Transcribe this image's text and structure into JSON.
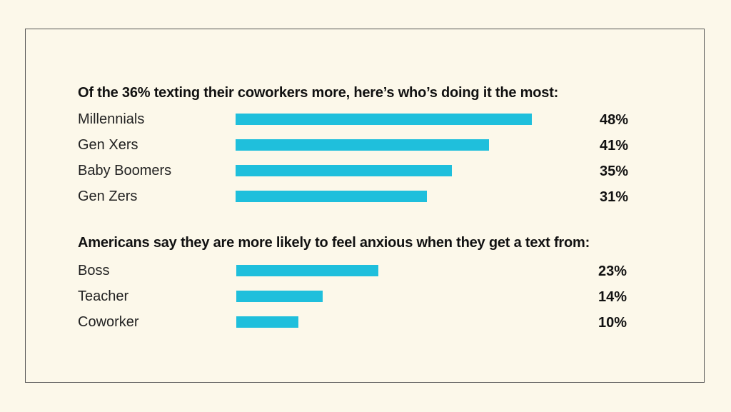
{
  "colors": {
    "bar": "#1fbfdc",
    "background": "#fcf8ea"
  },
  "chart_data": [
    {
      "type": "bar",
      "orientation": "horizontal",
      "title": "Of the 36% texting their coworkers more, here’s who’s doing it the most:",
      "categories": [
        "Millennials",
        "Gen Xers",
        "Baby Boomers",
        "Gen Zers"
      ],
      "values": [
        48,
        41,
        35,
        31
      ],
      "value_labels": [
        "48%",
        "41%",
        "35%",
        "31%"
      ],
      "unit": "%",
      "xlim": [
        0,
        50
      ]
    },
    {
      "type": "bar",
      "orientation": "horizontal",
      "title": "Americans say they are more likely to feel anxious when they get a text from:",
      "categories": [
        "Boss",
        "Teacher",
        "Coworker"
      ],
      "values": [
        23,
        14,
        10
      ],
      "value_labels": [
        "23%",
        "14%",
        "10%"
      ],
      "unit": "%",
      "xlim": [
        0,
        50
      ]
    }
  ]
}
